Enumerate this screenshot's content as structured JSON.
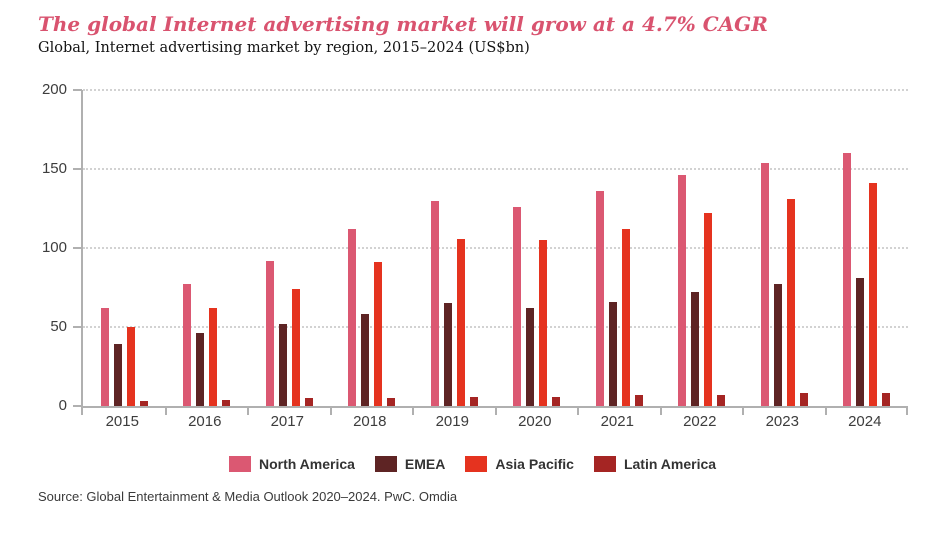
{
  "header": {
    "title": "The global Internet advertising market will grow at a 4.7% CAGR",
    "subtitle": "Global, Internet advertising market by region, 2015–2024 (US$bn)"
  },
  "chart_data": {
    "type": "bar",
    "title": "The global Internet advertising market will grow at a 4.7% CAGR",
    "subtitle": "Global, Internet advertising market by region, 2015–2024 (US$bn)",
    "categories": [
      "2015",
      "2016",
      "2017",
      "2018",
      "2019",
      "2020",
      "2021",
      "2022",
      "2023",
      "2024"
    ],
    "series": [
      {
        "name": "North America",
        "color": "#db5872",
        "values": [
          62,
          77,
          92,
          112,
          130,
          126,
          136,
          146,
          154,
          160
        ]
      },
      {
        "name": "EMEA",
        "color": "#5e2424",
        "values": [
          39,
          46,
          52,
          58,
          65,
          62,
          66,
          72,
          77,
          81
        ]
      },
      {
        "name": "Asia Pacific",
        "color": "#e5331f",
        "values": [
          50,
          62,
          74,
          91,
          106,
          105,
          112,
          122,
          131,
          141
        ]
      },
      {
        "name": "Latin America",
        "color": "#a52523",
        "values": [
          3,
          4,
          5,
          5,
          6,
          6,
          7,
          7,
          8,
          8
        ]
      }
    ],
    "xlabel": "",
    "ylabel": "",
    "ylim": [
      0,
      200
    ],
    "yticks": [
      0,
      50,
      100,
      150,
      200
    ],
    "grid": "horizontal-dotted",
    "legend_position": "bottom"
  },
  "colors": {
    "title": "#d9536f",
    "axis": "#b0b0b0",
    "gridline": "#d2d2d2",
    "tick_label": "#3d3d3d"
  },
  "footer": {
    "source": "Source: Global Entertainment & Media Outlook 2020–2024. PwC. Omdia"
  }
}
